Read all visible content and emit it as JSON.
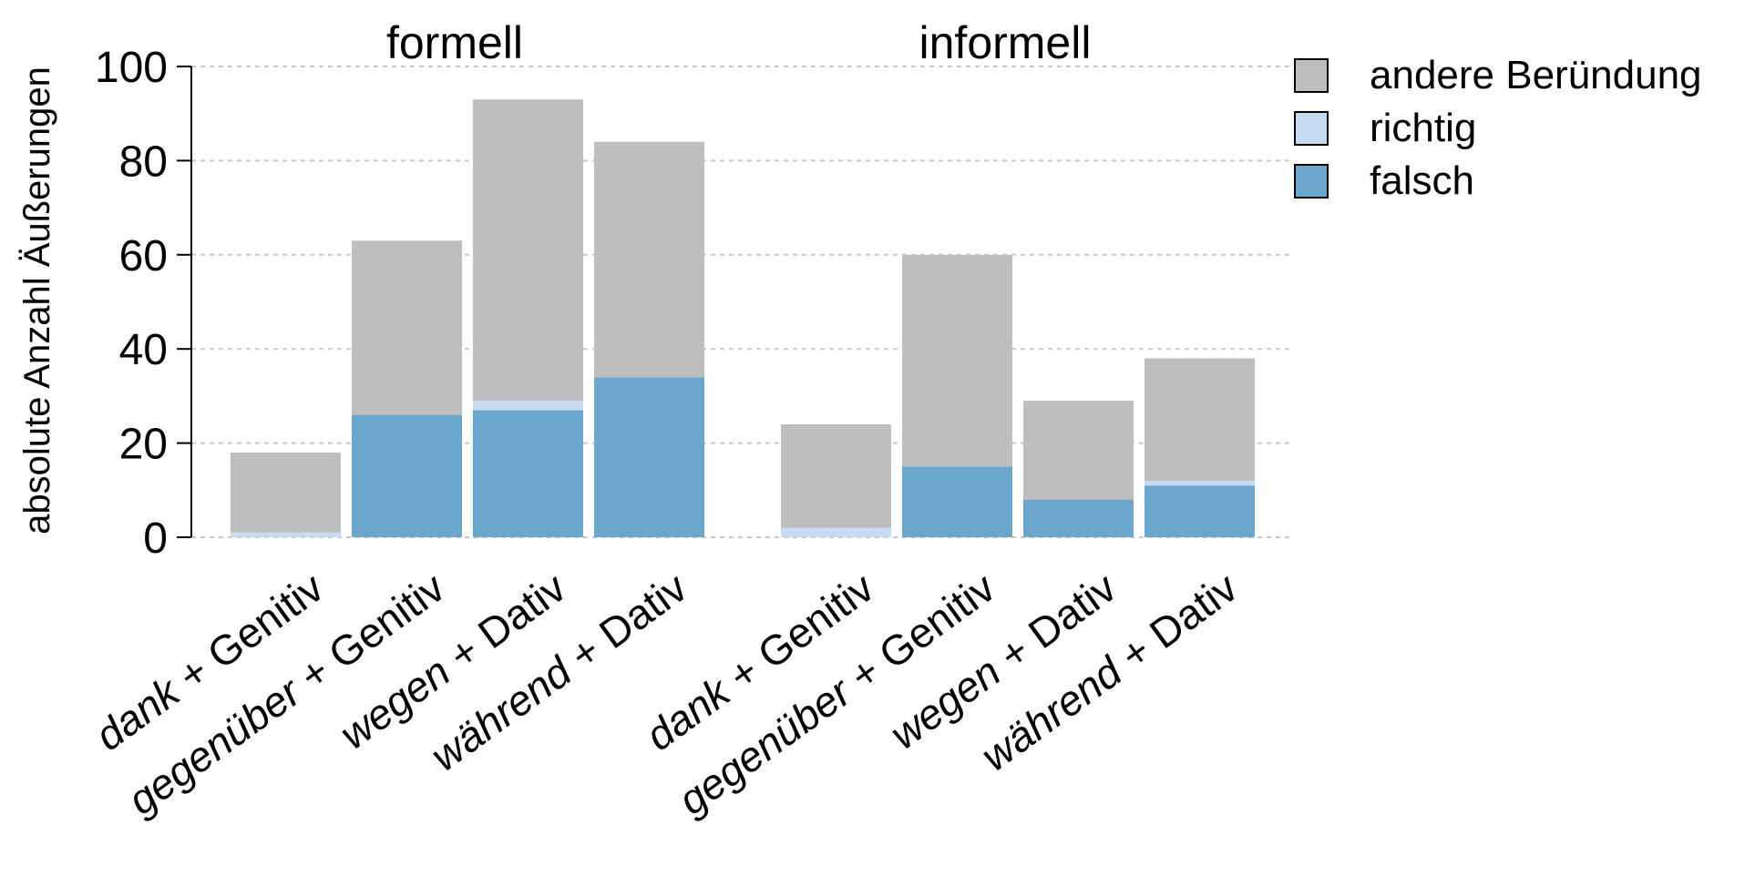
{
  "chart_data": {
    "type": "bar",
    "stacked": true,
    "ylabel": "absolute Anzahl Äußerungen",
    "ylim": [
      0,
      100
    ],
    "yticks": [
      0,
      20,
      40,
      60,
      80,
      100
    ],
    "grid": true,
    "legend_position": "top-right",
    "legend": [
      {
        "key": "andere",
        "label": "andere Beründung",
        "color": "#bebebe"
      },
      {
        "key": "richtig",
        "label": "richtig",
        "color": "#c6dbef"
      },
      {
        "key": "falsch",
        "label": "falsch",
        "color": "#6ba6cd"
      }
    ],
    "panels": [
      {
        "title": "formell",
        "bars": [
          {
            "word": "dank",
            "rest": " + Genitiv",
            "falsch": 0,
            "richtig": 1,
            "andere": 17
          },
          {
            "word": "gegenüber",
            "rest": " + Genitiv",
            "falsch": 26,
            "richtig": 0,
            "andere": 37
          },
          {
            "word": "wegen",
            "rest": " + Dativ",
            "falsch": 27,
            "richtig": 2,
            "andere": 64
          },
          {
            "word": "während",
            "rest": " + Dativ",
            "falsch": 34,
            "richtig": 0,
            "andere": 50
          }
        ]
      },
      {
        "title": "informell",
        "bars": [
          {
            "word": "dank",
            "rest": " + Genitiv",
            "falsch": 0,
            "richtig": 2,
            "andere": 22
          },
          {
            "word": "gegenüber",
            "rest": " + Genitiv",
            "falsch": 15,
            "richtig": 0,
            "andere": 45
          },
          {
            "word": "wegen",
            "rest": " + Dativ",
            "falsch": 8,
            "richtig": 0,
            "andere": 21
          },
          {
            "word": "während",
            "rest": " + Dativ",
            "falsch": 11,
            "richtig": 1,
            "andere": 26
          }
        ]
      }
    ]
  }
}
